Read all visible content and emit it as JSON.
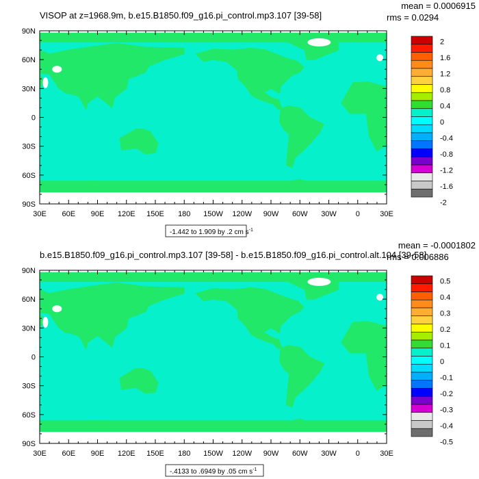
{
  "panels": [
    {
      "title": "VISOP at z=1968.9m, b.e15.B1850.f09_g16.pi_control.mp3.107 [39-58]",
      "mean": "mean = 0.0006915",
      "rms": "rms = 0.0294",
      "range_prefix": "-1.442 to 1.909 by .2 cm s",
      "range_exp": "-1",
      "colorbar_labels": [
        "2",
        "1.6",
        "1.2",
        "0.8",
        "0.4",
        "0",
        "-0.4",
        "-0.8",
        "-1.2",
        "-1.6",
        "-2"
      ]
    },
    {
      "title": "b.e15.B1850.f09_g16.pi_control.mp3.107 [39-58] - b.e15.B1850.f09_g16.pi_control.alt.104 [39-58]",
      "mean": "mean = -0.0001802",
      "rms": "rms = 0.006886",
      "range_prefix": "-.4133 to .6949 by .05 cm s",
      "range_exp": "-1",
      "colorbar_labels": [
        "0.5",
        "0.4",
        "0.3",
        "0.2",
        "0.1",
        "0",
        "-0.1",
        "-0.2",
        "-0.3",
        "-0.4",
        "-0.5"
      ]
    }
  ],
  "lat_labels": [
    "90N",
    "60N",
    "30N",
    "0",
    "30S",
    "60S",
    "90S"
  ],
  "lon_labels": [
    "30E",
    "60E",
    "90E",
    "120E",
    "150E",
    "180",
    "150W",
    "120W",
    "90W",
    "60W",
    "30W",
    "0",
    "30E"
  ],
  "colors": {
    "land": "#22e86a",
    "ocean": "#06f0cc",
    "missing": "#ffffff",
    "colorbar": [
      "#cc0000",
      "#ff1a00",
      "#ff5f00",
      "#ff8c1a",
      "#ffae33",
      "#ffd040",
      "#ffff00",
      "#a6ee00",
      "#34dc32",
      "#06f0cc",
      "#00ffff",
      "#00dcff",
      "#00b0ff",
      "#0076ff",
      "#0000ff",
      "#7a00cc",
      "#d400d4",
      "#e8e8e8",
      "#c8c8c8",
      "#6e6e6e"
    ]
  }
}
